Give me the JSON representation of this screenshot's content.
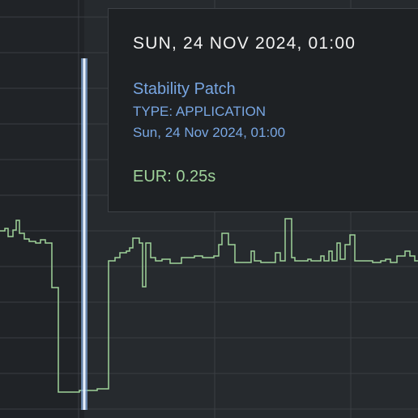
{
  "tooltip": {
    "title": "SUN, 24 NOV 2024, 01:00",
    "name": "Stability Patch",
    "type": "TYPE: APPLICATION",
    "date": "Sun, 24 Nov 2024, 01:00",
    "metric": "EUR: 0.25s"
  }
}
